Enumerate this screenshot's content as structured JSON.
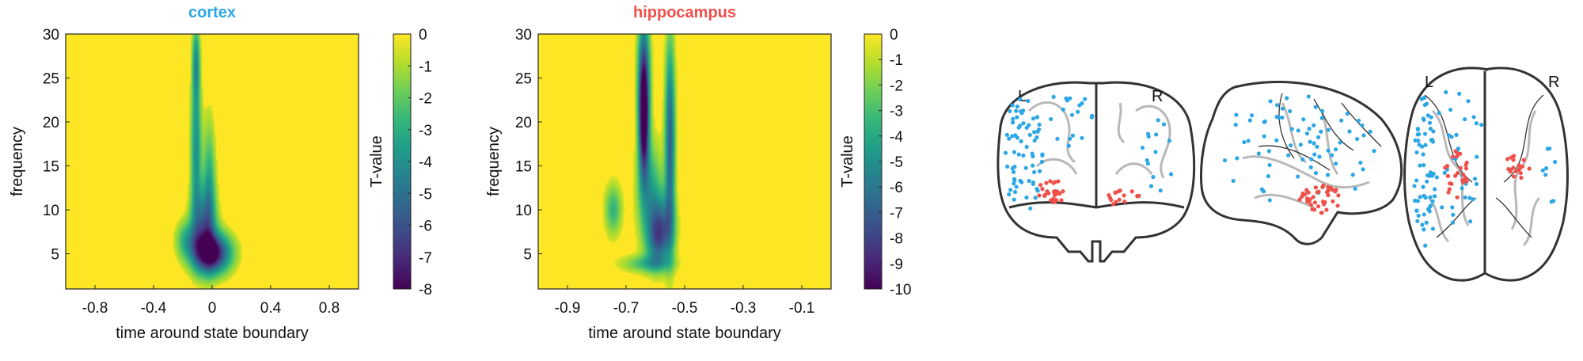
{
  "chart_data": [
    {
      "type": "heatmap",
      "title": "cortex",
      "title_color": "#2ca7e6",
      "xlabel": "time around state boundary",
      "ylabel": "frequency",
      "colorbar_label": "T-value",
      "x_ticks": [
        "-0.8",
        "-0.4",
        "0",
        "0.4",
        "0.8"
      ],
      "y_ticks": [
        "5",
        "10",
        "15",
        "20",
        "25",
        "30"
      ],
      "colorbar_ticks": [
        "0",
        "-1",
        "-2",
        "-3",
        "-4",
        "-5",
        "-6",
        "-7",
        "-8"
      ],
      "xlim": [
        -1.0,
        1.0
      ],
      "ylim": [
        1,
        30
      ],
      "clim": [
        -8,
        0
      ],
      "colormap": [
        "#fde725",
        "#b5de2b",
        "#6ece58",
        "#35b779",
        "#1f9e89",
        "#26828e",
        "#31688e",
        "#3e4989",
        "#482878",
        "#440154"
      ],
      "blobs": [
        {
          "x": 0.0,
          "y": 5.0,
          "sx": 0.09,
          "sy": 1.6,
          "amp": -8.0
        },
        {
          "x": -0.06,
          "y": 8.0,
          "sx": 0.06,
          "sy": 3.0,
          "amp": -4.5
        },
        {
          "x": -0.11,
          "y": 17.0,
          "sx": 0.025,
          "sy": 6.0,
          "amp": -4.0
        },
        {
          "x": -0.11,
          "y": 27.0,
          "sx": 0.018,
          "sy": 3.0,
          "amp": -3.5
        },
        {
          "x": -0.02,
          "y": 13.0,
          "sx": 0.03,
          "sy": 5.0,
          "amp": -3.0
        },
        {
          "x": -0.18,
          "y": 6.5,
          "sx": 0.05,
          "sy": 1.5,
          "amp": -2.5
        }
      ]
    },
    {
      "type": "heatmap",
      "title": "hippocampus",
      "title_color": "#f0504a",
      "xlabel": "time around state boundary",
      "ylabel": "frequency",
      "colorbar_label": "T-value",
      "x_ticks": [
        "-0.9",
        "-0.7",
        "-0.5",
        "-0.3",
        "-0.1"
      ],
      "y_ticks": [
        "5",
        "10",
        "15",
        "20",
        "25",
        "30"
      ],
      "colorbar_ticks": [
        "0",
        "-1",
        "-2",
        "-3",
        "-4",
        "-5",
        "-6",
        "-7",
        "-8",
        "-9",
        "-10"
      ],
      "xlim": [
        -1.0,
        0.0
      ],
      "ylim": [
        1,
        30
      ],
      "clim": [
        -10,
        0
      ],
      "colormap": [
        "#fde725",
        "#b5de2b",
        "#6ece58",
        "#35b779",
        "#1f9e89",
        "#26828e",
        "#31688e",
        "#3e4989",
        "#482878",
        "#440154"
      ],
      "blobs": [
        {
          "x": -0.64,
          "y": 20.0,
          "sx": 0.012,
          "sy": 4.5,
          "amp": -9.5
        },
        {
          "x": -0.64,
          "y": 26.0,
          "sx": 0.015,
          "sy": 5.0,
          "amp": -6.0
        },
        {
          "x": -0.55,
          "y": 18.0,
          "sx": 0.012,
          "sy": 8.0,
          "amp": -7.0
        },
        {
          "x": -0.58,
          "y": 8.0,
          "sx": 0.03,
          "sy": 2.5,
          "amp": -5.5
        },
        {
          "x": -0.62,
          "y": 12.0,
          "sx": 0.03,
          "sy": 4.0,
          "amp": -4.0
        },
        {
          "x": -0.745,
          "y": 10.0,
          "sx": 0.02,
          "sy": 2.0,
          "amp": -3.5
        },
        {
          "x": -0.63,
          "y": 3.8,
          "sx": 0.06,
          "sy": 0.7,
          "amp": -3.0
        },
        {
          "x": -0.595,
          "y": 6.0,
          "sx": 0.025,
          "sy": 2.0,
          "amp": -3.0
        }
      ]
    }
  ],
  "brain": {
    "labels": {
      "coronal_left": "L",
      "coronal_right": "R",
      "axial_left": "L",
      "axial_right": "R"
    },
    "colors": {
      "cortex": "#2ca7e6",
      "hippocampus": "#f0504a",
      "outline": "#333333",
      "sulci": "#b8b8b8"
    }
  }
}
